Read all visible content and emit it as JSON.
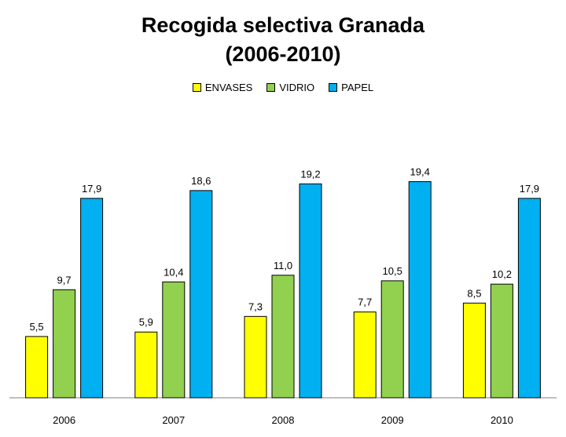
{
  "title_line1": "Recogida selectiva Granada",
  "title_line2": "(2006-2010)",
  "colors": {
    "ENVASES": "#ffff00",
    "VIDRIO": "#92d050",
    "PAPEL": "#00b0f0"
  },
  "chart_data": {
    "type": "bar",
    "title": "Recogida selectiva Granada (2006-2010)",
    "categories": [
      "2006",
      "2007",
      "2008",
      "2009",
      "2010"
    ],
    "series": [
      {
        "name": "ENVASES",
        "values": [
          5.5,
          5.9,
          7.3,
          7.7,
          8.5
        ],
        "labels": [
          "5,5",
          "5,9",
          "7,3",
          "7,7",
          "8,5"
        ]
      },
      {
        "name": "VIDRIO",
        "values": [
          9.7,
          10.4,
          11.0,
          10.5,
          10.2
        ],
        "labels": [
          "9,7",
          "10,4",
          "11,0",
          "10,5",
          "10,2"
        ]
      },
      {
        "name": "PAPEL",
        "values": [
          17.9,
          18.6,
          19.2,
          19.4,
          17.9
        ],
        "labels": [
          "17,9",
          "18,6",
          "19,2",
          "19,4",
          "17,9"
        ]
      }
    ],
    "ylim": [
      0,
      20
    ],
    "grid": false,
    "legend_position": "top"
  }
}
